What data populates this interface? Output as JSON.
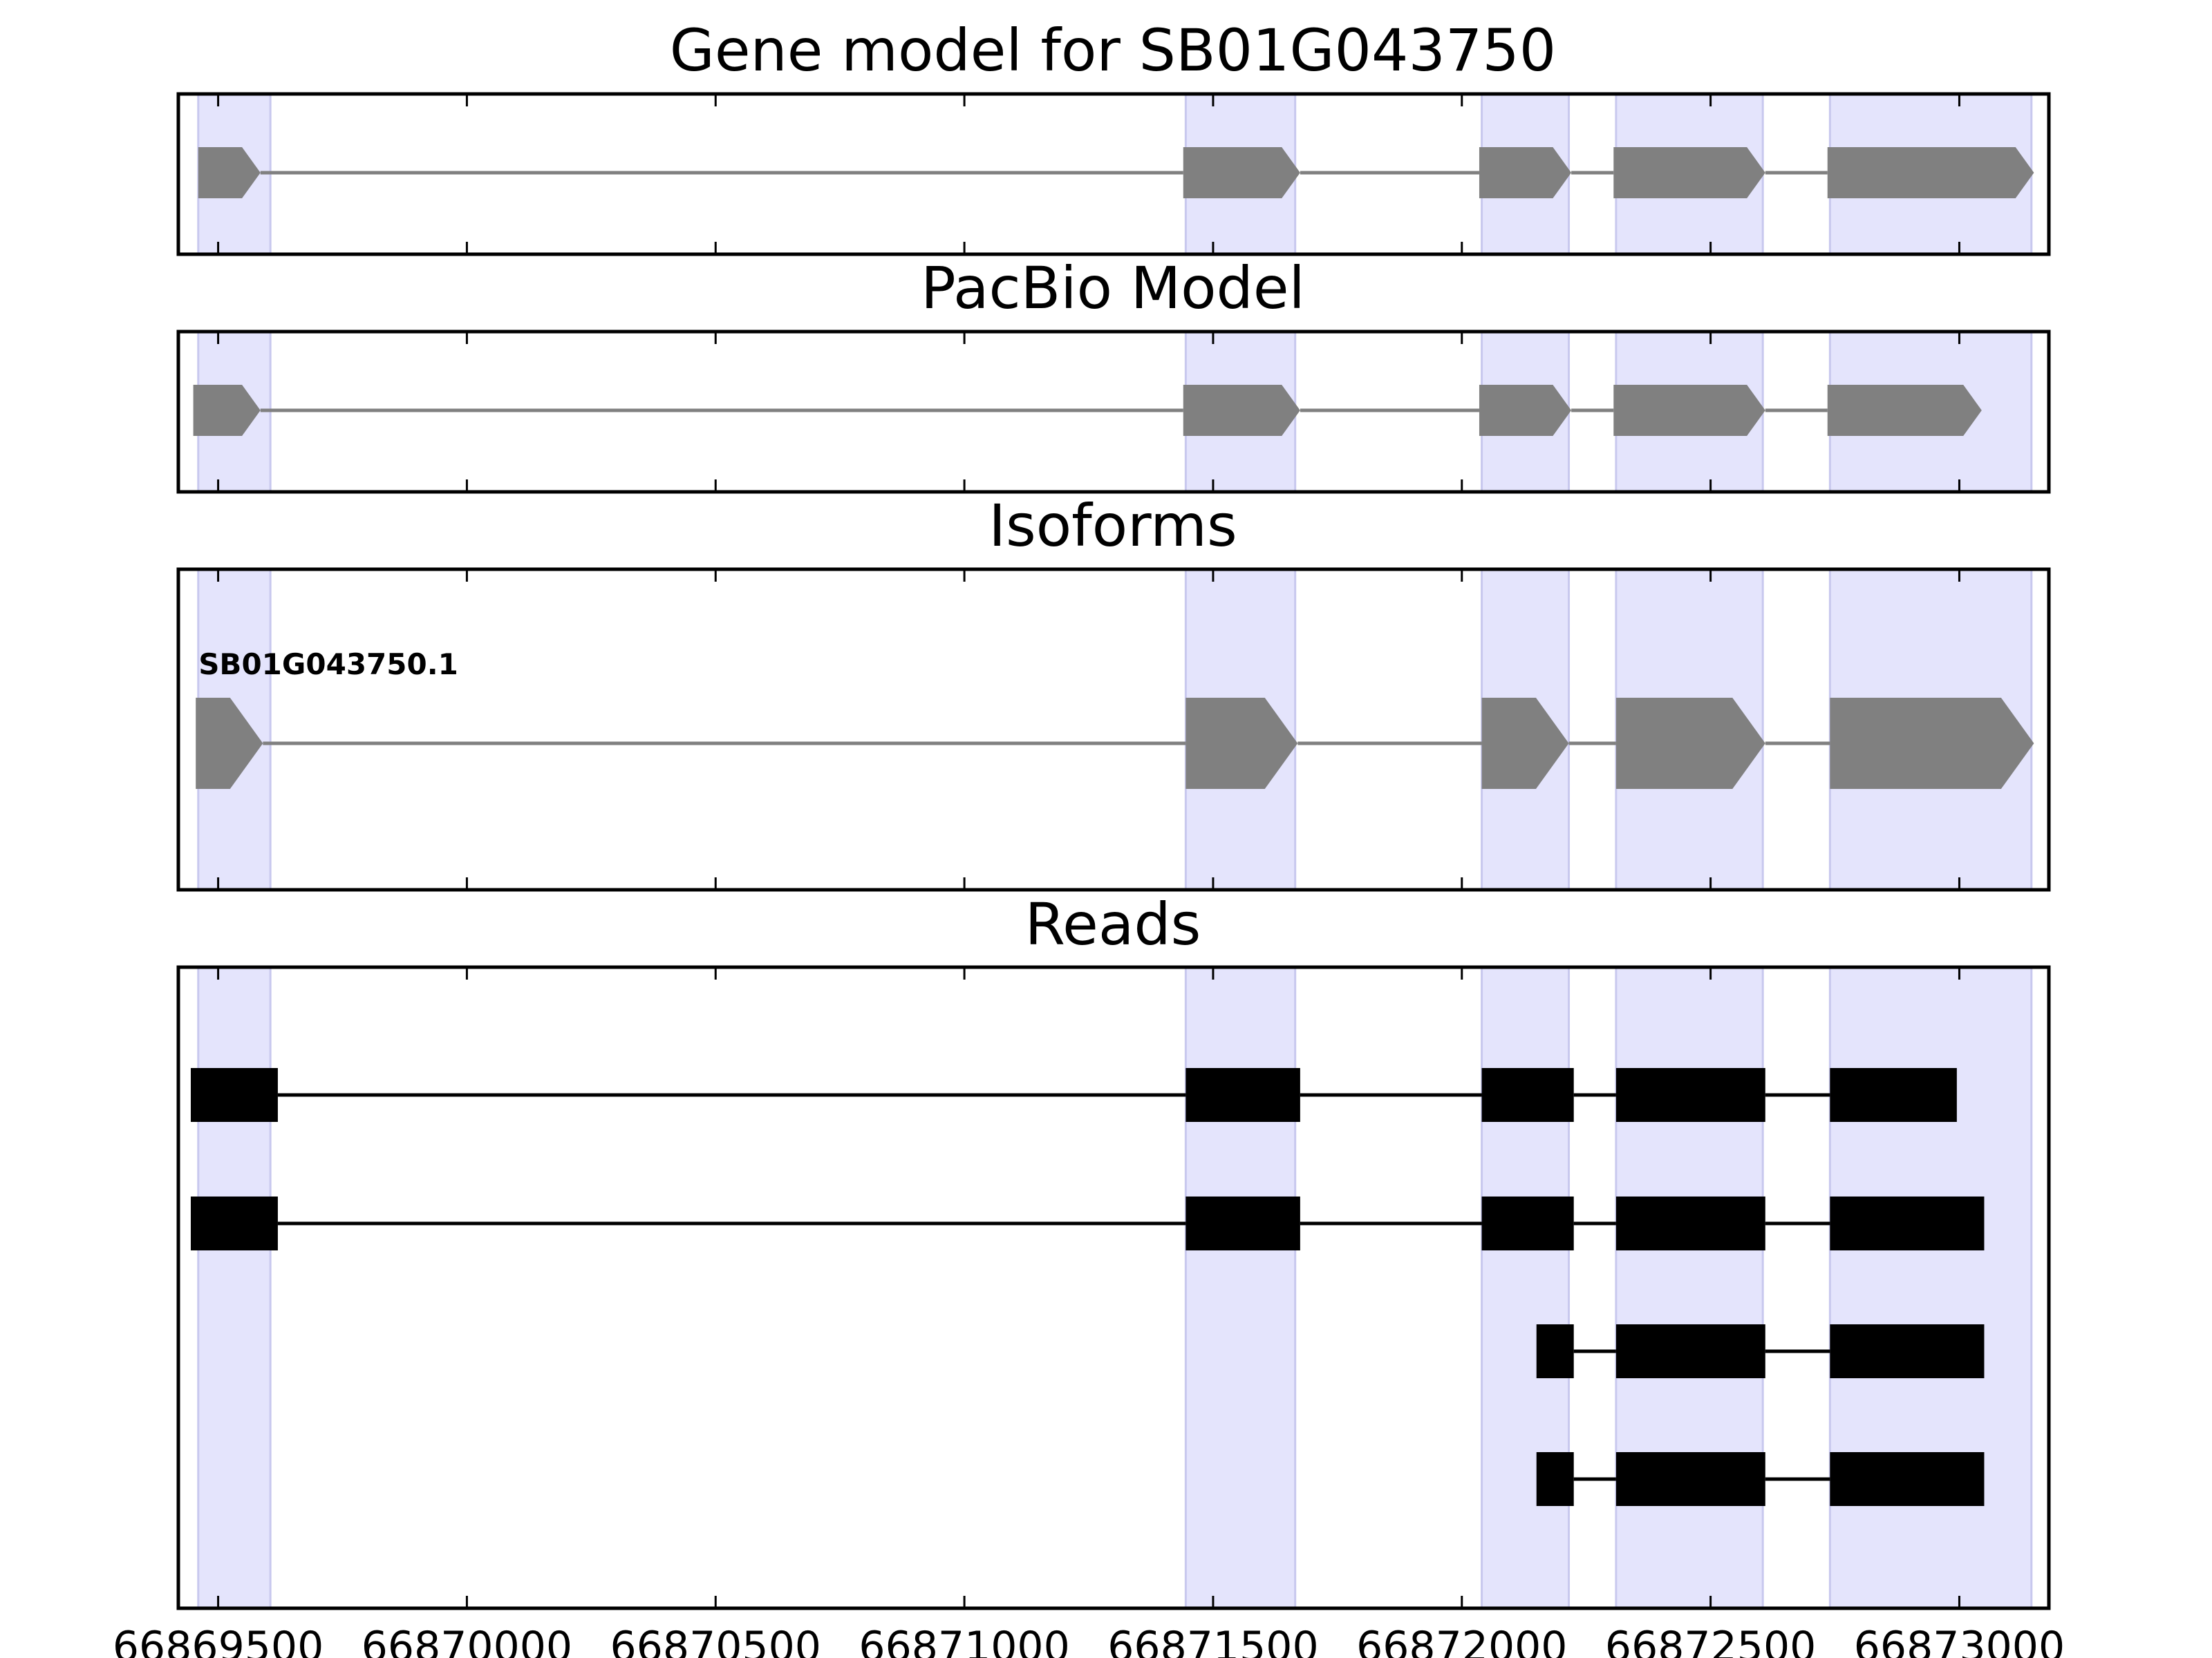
{
  "chart_data": [
    {
      "type": "gene-model",
      "title": "Gene model for SB01G043750",
      "xlim": [
        66869420,
        66873180
      ],
      "highlight_regions": [
        [
          66869460,
          66869605
        ],
        [
          66871445,
          66871665
        ],
        [
          66872040,
          66872215
        ],
        [
          66872310,
          66872605
        ],
        [
          66872740,
          66873145
        ]
      ],
      "models": [
        {
          "color": "#808080",
          "strand": "+",
          "label": "",
          "exons": [
            [
              66869460,
              66869585
            ],
            [
              66871440,
              66871675
            ],
            [
              66872035,
              66872220
            ],
            [
              66872305,
              66872610
            ],
            [
              66872735,
              66873150
            ]
          ]
        }
      ]
    },
    {
      "type": "gene-model",
      "title": "PacBio Model",
      "xlim": [
        66869420,
        66873180
      ],
      "highlight_regions": [
        [
          66869460,
          66869605
        ],
        [
          66871445,
          66871665
        ],
        [
          66872040,
          66872215
        ],
        [
          66872310,
          66872605
        ],
        [
          66872740,
          66873145
        ]
      ],
      "models": [
        {
          "color": "#808080",
          "strand": "+",
          "label": "",
          "exons": [
            [
              66869450,
              66869585
            ],
            [
              66871440,
              66871675
            ],
            [
              66872035,
              66872220
            ],
            [
              66872305,
              66872610
            ],
            [
              66872735,
              66873045
            ]
          ]
        }
      ]
    },
    {
      "type": "gene-model",
      "title": "Isoforms",
      "xlim": [
        66869420,
        66873180
      ],
      "highlight_regions": [
        [
          66869460,
          66869605
        ],
        [
          66871445,
          66871665
        ],
        [
          66872040,
          66872215
        ],
        [
          66872310,
          66872605
        ],
        [
          66872740,
          66873145
        ]
      ],
      "models": [
        {
          "color": "#808080",
          "strand": "+",
          "label": "SB01G043750.1",
          "exons": [
            [
              66869455,
              66869590
            ],
            [
              66871445,
              66871670
            ],
            [
              66872040,
              66872215
            ],
            [
              66872310,
              66872610
            ],
            [
              66872740,
              66873150
            ]
          ]
        }
      ]
    },
    {
      "type": "reads",
      "title": "Reads",
      "xlim": [
        66869420,
        66873180
      ],
      "xticks": [
        "66869500",
        "66870000",
        "66870500",
        "66871000",
        "66871500",
        "66872000",
        "66872500",
        "66873000"
      ],
      "xtick_values": [
        66869500,
        66870000,
        66870500,
        66871000,
        66871500,
        66872000,
        66872500,
        66873000
      ],
      "highlight_regions": [
        [
          66869460,
          66869605
        ],
        [
          66871445,
          66871665
        ],
        [
          66872040,
          66872215
        ],
        [
          66872310,
          66872605
        ],
        [
          66872740,
          66873145
        ]
      ],
      "reads": [
        {
          "exons": [
            [
              66869445,
              66869620
            ],
            [
              66871445,
              66871675
            ],
            [
              66872040,
              66872225
            ],
            [
              66872310,
              66872610
            ],
            [
              66872740,
              66872995
            ]
          ]
        },
        {
          "exons": [
            [
              66869445,
              66869620
            ],
            [
              66871445,
              66871675
            ],
            [
              66872040,
              66872225
            ],
            [
              66872310,
              66872610
            ],
            [
              66872740,
              66873050
            ]
          ]
        },
        {
          "exons": [
            [
              66872150,
              66872225
            ],
            [
              66872310,
              66872610
            ],
            [
              66872740,
              66873050
            ]
          ]
        },
        {
          "exons": [
            [
              66872150,
              66872225
            ],
            [
              66872310,
              66872610
            ],
            [
              66872740,
              66873050
            ]
          ]
        }
      ]
    }
  ],
  "colors": {
    "highlight_fill": "#e4e4fc",
    "highlight_edge": "#c8c8ee",
    "model_fill": "#808080",
    "intron": "#808080",
    "read_fill": "#000000",
    "axis": "#000000"
  }
}
